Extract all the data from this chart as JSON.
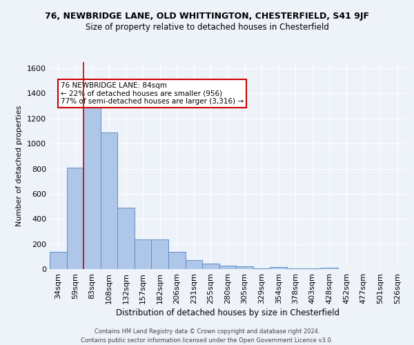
{
  "title_line1": "76, NEWBRIDGE LANE, OLD WHITTINGTON, CHESTERFIELD, S41 9JF",
  "title_line2": "Size of property relative to detached houses in Chesterfield",
  "xlabel": "Distribution of detached houses by size in Chesterfield",
  "ylabel": "Number of detached properties",
  "footer_line1": "Contains HM Land Registry data © Crown copyright and database right 2024.",
  "footer_line2": "Contains public sector information licensed under the Open Government Licence v3.0.",
  "categories": [
    "34sqm",
    "59sqm",
    "83sqm",
    "108sqm",
    "132sqm",
    "157sqm",
    "182sqm",
    "206sqm",
    "231sqm",
    "255sqm",
    "280sqm",
    "305sqm",
    "329sqm",
    "354sqm",
    "378sqm",
    "403sqm",
    "428sqm",
    "452sqm",
    "477sqm",
    "501sqm",
    "526sqm"
  ],
  "values": [
    140,
    810,
    1300,
    1090,
    490,
    235,
    235,
    135,
    70,
    45,
    25,
    20,
    5,
    15,
    5,
    5,
    10,
    0,
    0,
    0,
    0
  ],
  "bar_color": "#aec6e8",
  "bar_edge_color": "#5b8fc9",
  "vline_color": "#cc0000",
  "vline_x": 2.0,
  "annotation_text": "76 NEWBRIDGE LANE: 84sqm\n← 22% of detached houses are smaller (956)\n77% of semi-detached houses are larger (3,316) →",
  "annotation_box_color": "#ffffff",
  "annotation_box_edge": "#cc0000",
  "ylim": [
    0,
    1650
  ],
  "yticks": [
    0,
    200,
    400,
    600,
    800,
    1000,
    1200,
    1400,
    1600
  ],
  "background_color": "#eef2f9",
  "grid_color": "#ffffff",
  "title1_fontsize": 9,
  "title2_fontsize": 8.5,
  "xlabel_fontsize": 8.5,
  "ylabel_fontsize": 8,
  "tick_fontsize": 8,
  "footer_fontsize": 6.0,
  "annotation_fontsize": 7.5
}
